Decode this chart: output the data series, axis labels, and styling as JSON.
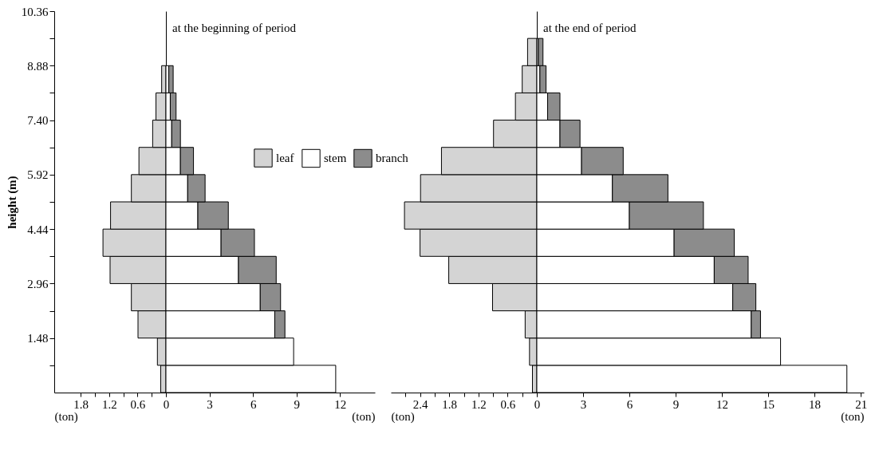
{
  "chart_data": [
    {
      "type": "bar",
      "orientation": "horizontal",
      "ylabel": "height (m)",
      "xlabel": "(ton)",
      "x": [
        0.37,
        1.11,
        1.85,
        2.59,
        3.33,
        4.07,
        4.81,
        5.55,
        6.29,
        7.03,
        7.77,
        8.51
      ],
      "series": [
        {
          "name": "leaf",
          "color": "#d4d4d4",
          "values": [
            0.11,
            0.18,
            0.59,
            0.73,
            1.18,
            1.33,
            1.17,
            0.73,
            0.57,
            0.28,
            0.21,
            0.09
          ]
        }
      ],
      "xlim": [
        2.36,
        0
      ],
      "xticks": [
        1.8,
        {
          "value": 1.5,
          "label": null
        },
        1.2,
        {
          "value": 0.9,
          "label": null
        },
        0.6,
        {
          "value": 0.3,
          "label": null
        },
        {
          "value": 0,
          "label": null
        }
      ],
      "ylim": [
        0,
        10.36
      ],
      "yticks": [
        {
          "value": 0.74,
          "label": null
        },
        1.48,
        {
          "value": 2.22,
          "label": null
        },
        2.96,
        {
          "value": 3.7,
          "label": null
        },
        4.44,
        {
          "value": 5.18,
          "label": null
        },
        5.92,
        {
          "value": 6.66,
          "label": null
        },
        {
          "value": 7.4,
          "label": "7.40"
        },
        {
          "value": 8.14,
          "label": null
        },
        8.88,
        {
          "value": 9.62,
          "label": null
        },
        10.36
      ],
      "legend": "right"
    },
    {
      "type": "bar",
      "orientation": "horizontal",
      "stacked": true,
      "annotations": [
        "at the beginning of period"
      ],
      "xlabel": "(ton)",
      "x": [
        0.37,
        1.11,
        1.85,
        2.59,
        3.33,
        4.07,
        4.81,
        5.55,
        6.29,
        7.03,
        7.77,
        8.51
      ],
      "series": [
        {
          "name": "stem",
          "color": "#ffffff",
          "values": [
            11.7,
            8.8,
            7.5,
            6.5,
            5.0,
            3.8,
            2.2,
            1.5,
            1.0,
            0.4,
            0.3,
            0.2
          ]
        },
        {
          "name": "branch",
          "color": "#8c8c8c",
          "values": [
            null,
            null,
            0.7,
            1.4,
            2.6,
            2.3,
            2.1,
            1.2,
            0.9,
            0.6,
            0.4,
            0.3
          ]
        }
      ],
      "xlim": [
        0,
        14.4
      ],
      "xticks": [
        0,
        3,
        6,
        9,
        12
      ],
      "ylim": [
        0,
        10.36
      ],
      "tick_labels": "x",
      "legend": "right"
    },
    {
      "type": "bar",
      "orientation": "horizontal",
      "xlabel": "(ton)",
      "x": [
        0.37,
        1.11,
        1.85,
        2.59,
        3.33,
        4.07,
        4.81,
        5.55,
        6.29,
        7.03,
        7.77,
        8.51,
        9.25
      ],
      "series": [
        {
          "color": "#d4d4d4",
          "values": [
            0.09,
            0.15,
            0.24,
            0.91,
            1.81,
            2.4,
            2.72,
            2.39,
            1.96,
            0.89,
            0.44,
            0.3,
            0.19
          ]
        }
      ],
      "xlim": [
        3.0,
        0
      ],
      "xticks": [
        {
          "value": 2.7,
          "label": null
        },
        2.4,
        {
          "value": 2.1,
          "label": null
        },
        1.8,
        {
          "value": 1.5,
          "label": null
        },
        1.2,
        {
          "value": 0.9,
          "label": null
        },
        0.6,
        {
          "value": 0.3,
          "label": null
        },
        {
          "value": 0,
          "label": null
        }
      ],
      "ylim": [
        0,
        10.36
      ],
      "tick_labels": "x"
    },
    {
      "type": "bar",
      "orientation": "horizontal",
      "stacked": true,
      "annotations": [
        "at the end of period"
      ],
      "xlabel": "(ton)",
      "x": [
        0.37,
        1.11,
        1.85,
        2.59,
        3.33,
        4.07,
        4.81,
        5.55,
        6.29,
        7.03,
        7.77,
        8.51,
        9.25
      ],
      "series": [
        {
          "color": "#ffffff",
          "values": [
            20.1,
            15.8,
            13.9,
            12.7,
            11.5,
            8.9,
            6.0,
            4.9,
            2.9,
            1.5,
            0.7,
            0.2,
            0.1
          ]
        },
        {
          "color": "#8c8c8c",
          "values": [
            null,
            null,
            0.6,
            1.5,
            2.2,
            3.9,
            4.8,
            3.6,
            2.7,
            1.3,
            0.8,
            0.4,
            0.3
          ]
        }
      ],
      "xlim": [
        0,
        21.2
      ],
      "xticks": [
        0,
        3,
        6,
        9,
        12,
        15,
        18,
        21
      ],
      "ylim": [
        0,
        10.36
      ],
      "tick_labels": "x"
    }
  ]
}
